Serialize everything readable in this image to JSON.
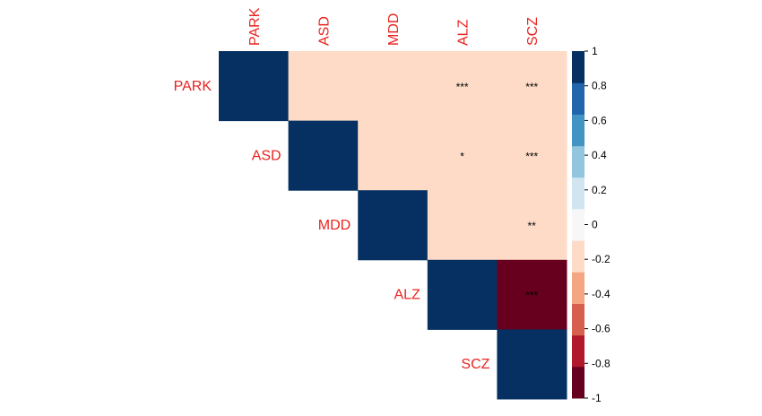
{
  "chart_data": {
    "type": "heatmap",
    "layout": "upper-triangle correlation matrix",
    "variables": [
      "PARK",
      "ASD",
      "MDD",
      "ALZ",
      "SCZ"
    ],
    "matrix": [
      [
        1,
        -0.1,
        -0.1,
        -0.1,
        -0.1
      ],
      [
        null,
        1,
        -0.1,
        -0.1,
        -0.1
      ],
      [
        null,
        null,
        1,
        -0.1,
        -0.1
      ],
      [
        null,
        null,
        null,
        1,
        -0.9
      ],
      [
        null,
        null,
        null,
        null,
        1
      ]
    ],
    "significance": [
      [
        "",
        "",
        "",
        "***",
        "***"
      ],
      [
        null,
        "",
        "",
        "*",
        "***"
      ],
      [
        null,
        null,
        "",
        "",
        "**"
      ],
      [
        null,
        null,
        null,
        "",
        "***"
      ],
      [
        null,
        null,
        null,
        null,
        ""
      ]
    ],
    "label_color": "#e8231f",
    "colorbar": {
      "range": [
        -1,
        1
      ],
      "position": "right",
      "ticks": [
        "1",
        "0.8",
        "0.6",
        "0.4",
        "0.2",
        "0",
        "-0.2",
        "-0.4",
        "-0.6",
        "-0.8",
        "-1"
      ],
      "colors": [
        "#67001f",
        "#b2182b",
        "#d6604d",
        "#f4a582",
        "#fddbc7",
        "#f7f7f7",
        "#d1e5f0",
        "#92c5de",
        "#4393c3",
        "#2166ac",
        "#053061"
      ]
    },
    "colors": {
      "positive_full": "#053061",
      "slight_negative": "#fddbc7",
      "strong_negative": "#67001f"
    }
  }
}
